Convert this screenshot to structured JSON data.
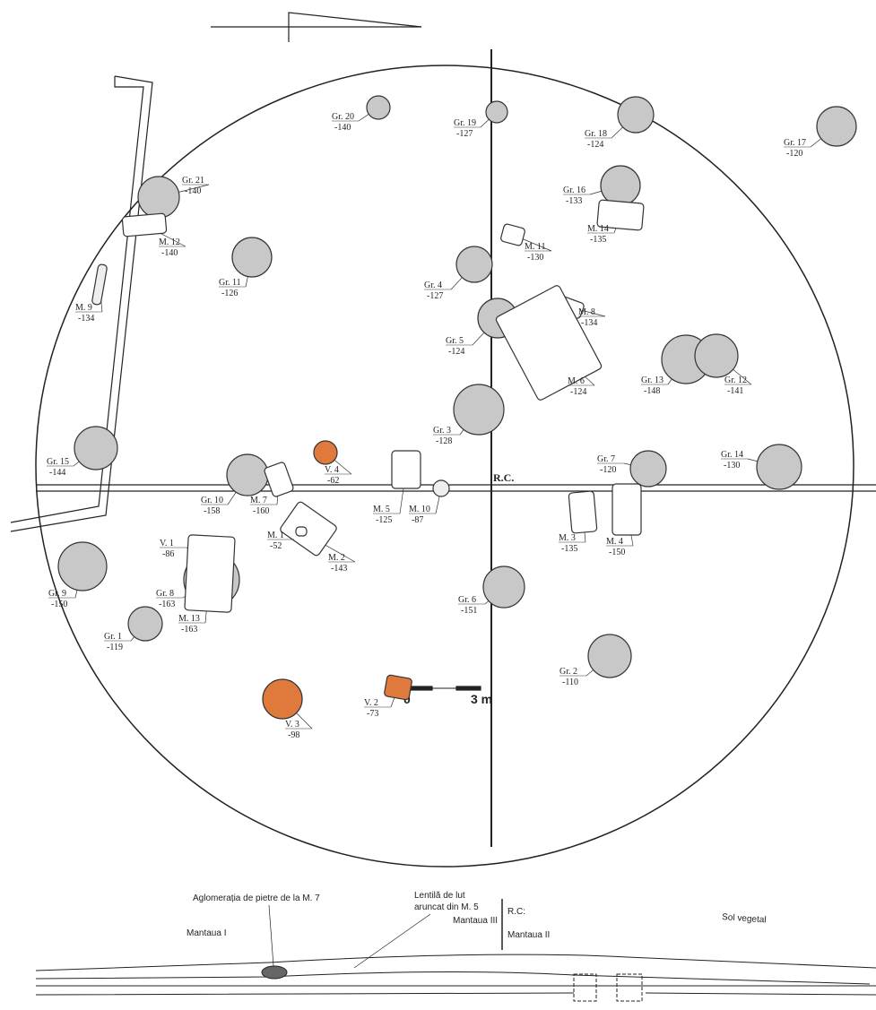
{
  "features": [
    {
      "label": "Gr. 20",
      "depth": "-140"
    },
    {
      "label": "Gr. 19",
      "depth": "-127"
    },
    {
      "label": "Gr. 18",
      "depth": "-124"
    },
    {
      "label": "Gr. 17",
      "depth": "-120"
    },
    {
      "label": "Gr. 21",
      "depth": "-140"
    },
    {
      "label": "M. 12",
      "depth": "-140"
    },
    {
      "label": "Gr. 16",
      "depth": "-133"
    },
    {
      "label": "M. 14",
      "depth": "-135"
    },
    {
      "label": "M. 11",
      "depth": "-130"
    },
    {
      "label": "Gr. 11",
      "depth": "-126"
    },
    {
      "label": "Gr. 4",
      "depth": "-127"
    },
    {
      "label": "M. 8",
      "depth": "-134"
    },
    {
      "label": "M. 9",
      "depth": "-134"
    },
    {
      "label": "Gr. 5",
      "depth": "-124"
    },
    {
      "label": "M. 6",
      "depth": "-124"
    },
    {
      "label": "Gr. 13",
      "depth": "-148"
    },
    {
      "label": "Gr. 12",
      "depth": "-141"
    },
    {
      "label": "Gr. 3",
      "depth": "-128"
    },
    {
      "label": "Gr. 15",
      "depth": "-144"
    },
    {
      "label": "V. 4",
      "depth": "-62"
    },
    {
      "label": "Gr. 7",
      "depth": "-120"
    },
    {
      "label": "Gr. 14",
      "depth": "-130"
    },
    {
      "label": "Gr. 10",
      "depth": "-158"
    },
    {
      "label": "M. 7",
      "depth": "-160"
    },
    {
      "label": "M. 5",
      "depth": "-125"
    },
    {
      "label": "M. 10",
      "depth": "-87"
    },
    {
      "label": "M. 3",
      "depth": "-135"
    },
    {
      "label": "M. 4",
      "depth": "-150"
    },
    {
      "label": "M. 1",
      "depth": "-52"
    },
    {
      "label": "M. 2",
      "depth": "-143"
    },
    {
      "label": "V. 1",
      "depth": "-86"
    },
    {
      "label": "Gr. 9",
      "depth": "-150"
    },
    {
      "label": "Gr. 8",
      "depth": "-163"
    },
    {
      "label": "M. 13",
      "depth": "-163"
    },
    {
      "label": "Gr. 1",
      "depth": "-119"
    },
    {
      "label": "Gr. 6",
      "depth": "-151"
    },
    {
      "label": "Gr. 2",
      "depth": "-110"
    },
    {
      "label": "V. 2",
      "depth": "-73"
    },
    {
      "label": "V. 3",
      "depth": "-98"
    }
  ],
  "center_label": "R.C.",
  "scale": {
    "start": "0",
    "end": "3 m"
  },
  "section": {
    "stones": "Aglomerația de pietre de la M. 7",
    "lens": [
      "Lentilă de lut",
      "aruncat din M. 5"
    ],
    "center": "R.C:",
    "mantle1": "Mantaua I",
    "mantle3": "Mantaua III",
    "mantle2": "Mantaua II",
    "soil": "Sol vegetal"
  }
}
